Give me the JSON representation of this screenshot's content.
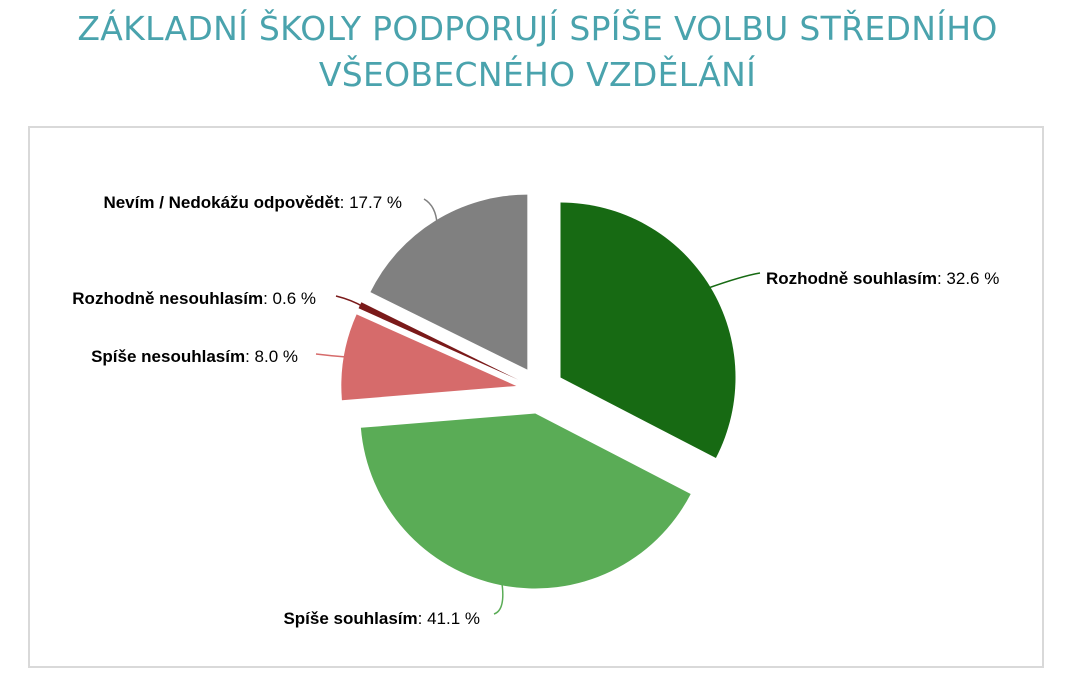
{
  "title": {
    "line1": "ZÁKLADNÍ ŠKOLY PODPORUJÍ SPÍŠE VOLBU STŘEDNÍHO",
    "line2": "VŠEOBECNÉHO VZDĚLÁNÍ"
  },
  "chart_data": {
    "type": "pie",
    "title": "ZÁKLADNÍ ŠKOLY PODPORUJÍ SPÍŠE VOLBU STŘEDNÍHO VŠEOBECNÉHO VZDĚLÁNÍ",
    "unit": "%",
    "exploded": true,
    "slices": [
      {
        "label": "Rozhodně souhlasím",
        "value": 32.6,
        "display": "32.6 %",
        "color": "#176a13"
      },
      {
        "label": "Spíše souhlasím",
        "value": 41.1,
        "display": "41.1 %",
        "color": "#5aac56"
      },
      {
        "label": "Spíše nesouhlasím",
        "value": 8.0,
        "display": "8.0 %",
        "color": "#d66b6b"
      },
      {
        "label": "Rozhodně nesouhlasím",
        "value": 0.6,
        "display": "0.6 %",
        "color": "#7a1a1a"
      },
      {
        "label": "Nevím / Nedokážu odpovědět",
        "value": 17.7,
        "display": "17.7 %",
        "color": "#808080"
      }
    ]
  }
}
